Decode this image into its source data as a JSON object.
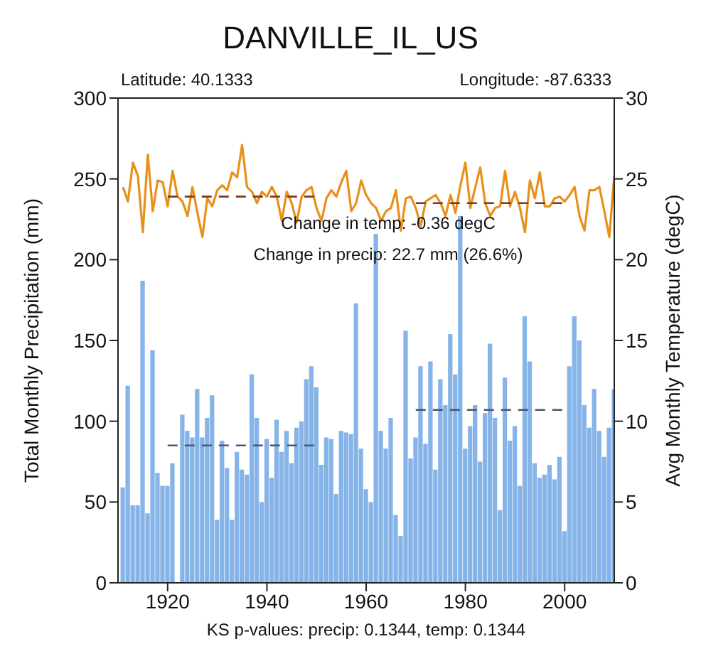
{
  "chart_data": {
    "type": "bar",
    "title": "DANVILLE_IL_US",
    "ylabel": "Total Monthly Precipitation (mm)",
    "y2label": "Avg Monthly Temperature (degC)",
    "annotations": [
      "Latitude: 40.1333",
      "Longitude: -87.6333",
      "Change in temp: -0.36 degC",
      "Change in precip: 22.7 mm (26.6%)",
      "KS p-values: precip: 0.1344, temp: 0.1344"
    ],
    "x": [
      1911,
      1912,
      1913,
      1914,
      1915,
      1916,
      1917,
      1918,
      1919,
      1920,
      1921,
      1922,
      1923,
      1924,
      1925,
      1926,
      1927,
      1928,
      1929,
      1930,
      1931,
      1932,
      1933,
      1934,
      1935,
      1936,
      1937,
      1938,
      1939,
      1940,
      1941,
      1942,
      1943,
      1944,
      1945,
      1946,
      1947,
      1948,
      1949,
      1950,
      1951,
      1952,
      1953,
      1954,
      1955,
      1956,
      1957,
      1958,
      1959,
      1960,
      1961,
      1962,
      1963,
      1964,
      1965,
      1966,
      1967,
      1968,
      1969,
      1970,
      1971,
      1972,
      1973,
      1974,
      1975,
      1976,
      1977,
      1978,
      1979,
      1980,
      1981,
      1982,
      1983,
      1984,
      1985,
      1986,
      1987,
      1988,
      1989,
      1990,
      1991,
      1992,
      1993,
      1994,
      1995,
      1996,
      1997,
      1998,
      1999,
      2000,
      2001,
      2002,
      2003,
      2004,
      2005,
      2006,
      2007,
      2008,
      2009,
      2010
    ],
    "series": [
      {
        "color": "#86b4e8",
        "values": [
          59,
          122,
          48,
          48,
          187,
          43,
          144,
          68,
          60,
          60,
          74,
          null,
          104,
          94,
          90,
          120,
          90,
          102,
          116,
          39,
          88,
          71,
          39,
          81,
          70,
          67,
          129,
          102,
          50,
          89,
          65,
          101,
          81,
          94,
          74,
          96,
          100,
          126,
          134,
          121,
          73,
          90,
          89,
          55,
          94,
          93,
          92,
          173,
          83,
          58,
          50,
          216,
          94,
          83,
          102,
          42,
          29,
          156,
          77,
          90,
          134,
          86,
          137,
          70,
          126,
          110,
          154,
          129,
          227,
          83,
          97,
          110,
          75,
          105,
          148,
          102,
          45,
          127,
          88,
          97,
          60,
          165,
          137,
          74,
          65,
          67,
          73,
          64,
          78,
          32,
          134,
          165,
          150,
          110,
          96,
          120,
          94,
          78,
          96,
          120
        ]
      },
      {
        "type": "line",
        "axis": "y2",
        "color": "#e8901a",
        "values": [
          24.5,
          23.6,
          26.0,
          25.2,
          21.7,
          26.5,
          23.0,
          24.9,
          24.8,
          23.3,
          25.5,
          23.9,
          23.6,
          22.7,
          24.5,
          22.9,
          21.4,
          23.8,
          23.3,
          24.3,
          24.6,
          24.3,
          25.4,
          25.1,
          27.1,
          24.5,
          24.2,
          23.5,
          24.2,
          23.9,
          24.5,
          23.9,
          22.4,
          24.2,
          23.5,
          22.3,
          23.9,
          24.3,
          24.5,
          23.2,
          22.4,
          23.8,
          24.3,
          23.9,
          24.8,
          25.5,
          23.0,
          23.5,
          24.9,
          24.0,
          23.5,
          23.2,
          22.4,
          23.0,
          23.2,
          24.3,
          21.8,
          23.8,
          23.9,
          23.2,
          22.1,
          23.6,
          23.8,
          24.0,
          23.5,
          22.7,
          24.0,
          22.9,
          24.6,
          26.0,
          23.2,
          24.5,
          25.7,
          23.5,
          22.7,
          23.2,
          23.3,
          25.5,
          23.3,
          24.2,
          23.2,
          21.7,
          24.9,
          23.8,
          25.4,
          23.3,
          23.3,
          23.8,
          23.9,
          23.6,
          24.0,
          24.5,
          22.7,
          21.8,
          24.3,
          24.3,
          24.5,
          23.0,
          21.4,
          25.2
        ]
      },
      {
        "type": "line",
        "x": [
          1920,
          1950
        ],
        "values": [
          85,
          85
        ],
        "color": "#4a5670",
        "line_style": "dashed"
      },
      {
        "type": "line",
        "x": [
          1970,
          2000
        ],
        "values": [
          107,
          107
        ],
        "color": "#4a5670",
        "line_style": "dashed"
      },
      {
        "type": "line",
        "axis": "y2",
        "x": [
          1920,
          1950
        ],
        "values": [
          23.9,
          23.9
        ],
        "color": "#7a3a20",
        "line_style": "dashed"
      },
      {
        "type": "line",
        "axis": "y2",
        "x": [
          1970,
          2000
        ],
        "values": [
          23.5,
          23.5
        ],
        "color": "#7a3a20",
        "line_style": "dashed"
      }
    ],
    "xlim": [
      1910,
      2010
    ],
    "xticks": [
      1920,
      1940,
      1960,
      1980,
      2000
    ],
    "ylim": [
      0,
      300
    ],
    "yticks": [
      0,
      50,
      100,
      150,
      200,
      250,
      300
    ],
    "y2lim": [
      0,
      30
    ],
    "y2ticks": [
      0,
      5,
      10,
      15,
      20,
      25,
      30
    ],
    "marker": "none",
    "grid": false
  }
}
